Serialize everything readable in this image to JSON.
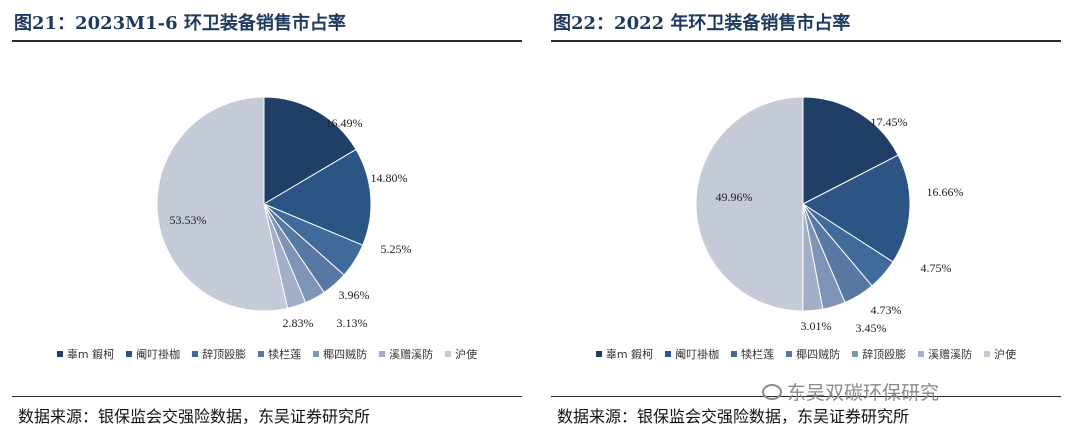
{
  "colors": {
    "title": "#1f3a5f",
    "c1": "#1f3f66",
    "c2": "#2c5585",
    "c3": "#3f6a9a",
    "c4": "#5878a4",
    "c5": "#7f93b6",
    "c6": "#a2afc8",
    "c7": "#c5cad9"
  },
  "charts": [
    {
      "title": "图21：2023M1-6 环卫装备销售市占率",
      "source": "数据来源：银保监会交强险数据，东吴证券研究所",
      "legend": [
        {
          "label": "辜m 鍜柯",
          "color": "#1f3f66"
        },
        {
          "label": "阉叮褂枷",
          "color": "#2c5585"
        },
        {
          "label": "辞顶殴膨",
          "color": "#3f6a9a"
        },
        {
          "label": "犊栏莲",
          "color": "#5878a4"
        },
        {
          "label": "椰四贼防",
          "color": "#7f93b6"
        },
        {
          "label": "溪赠溪防",
          "color": "#a2afc8"
        },
        {
          "label": "沪使",
          "color": "#c5cad9"
        }
      ]
    },
    {
      "title": "图22：2022 年环卫装备销售市占率",
      "source": "数据来源：银保监会交强险数据，东吴证券研究所",
      "legend": [
        {
          "label": "辜m 鍜柯",
          "color": "#1f3f66"
        },
        {
          "label": "阉叮褂枷",
          "color": "#2c5585"
        },
        {
          "label": "犊栏莲",
          "color": "#3f6a9a"
        },
        {
          "label": "椰四贼防",
          "color": "#5878a4"
        },
        {
          "label": "辞顶殴膨",
          "color": "#7f93b6"
        },
        {
          "label": "溪赠溪防",
          "color": "#a2afc8"
        },
        {
          "label": "沪使",
          "color": "#c5cad9"
        }
      ]
    }
  ],
  "chart_data": [
    {
      "type": "pie",
      "title": "图21：2023M1-6 环卫装备销售市占率",
      "labels": [
        "辜m 鍜柯",
        "阉叮褂枷",
        "辞顶殴膨",
        "犊栏莲",
        "椰四贼防",
        "溪赠溪防",
        "沪使"
      ],
      "values": [
        16.49,
        14.8,
        5.25,
        3.96,
        3.13,
        2.83,
        53.53
      ],
      "value_labels": [
        "16.49%",
        "14.80%",
        "5.25%",
        "3.96%",
        "3.13%",
        "2.83%",
        "53.53%"
      ],
      "legend": "bottom"
    },
    {
      "type": "pie",
      "title": "图22：2022 年环卫装备销售市占率",
      "labels": [
        "辜m 鍜柯",
        "阉叮褂枷",
        "犊栏莲",
        "椰四贼防",
        "辞顶殴膨",
        "溪赠溪防",
        "沪使"
      ],
      "values": [
        17.45,
        16.66,
        4.75,
        4.73,
        3.45,
        3.01,
        49.96
      ],
      "value_labels": [
        "17.45%",
        "16.66%",
        "4.75%",
        "4.73%",
        "3.45%",
        "3.01%",
        "49.96%"
      ],
      "legend": "bottom"
    }
  ],
  "watermark": "东吴双碳环保研究"
}
